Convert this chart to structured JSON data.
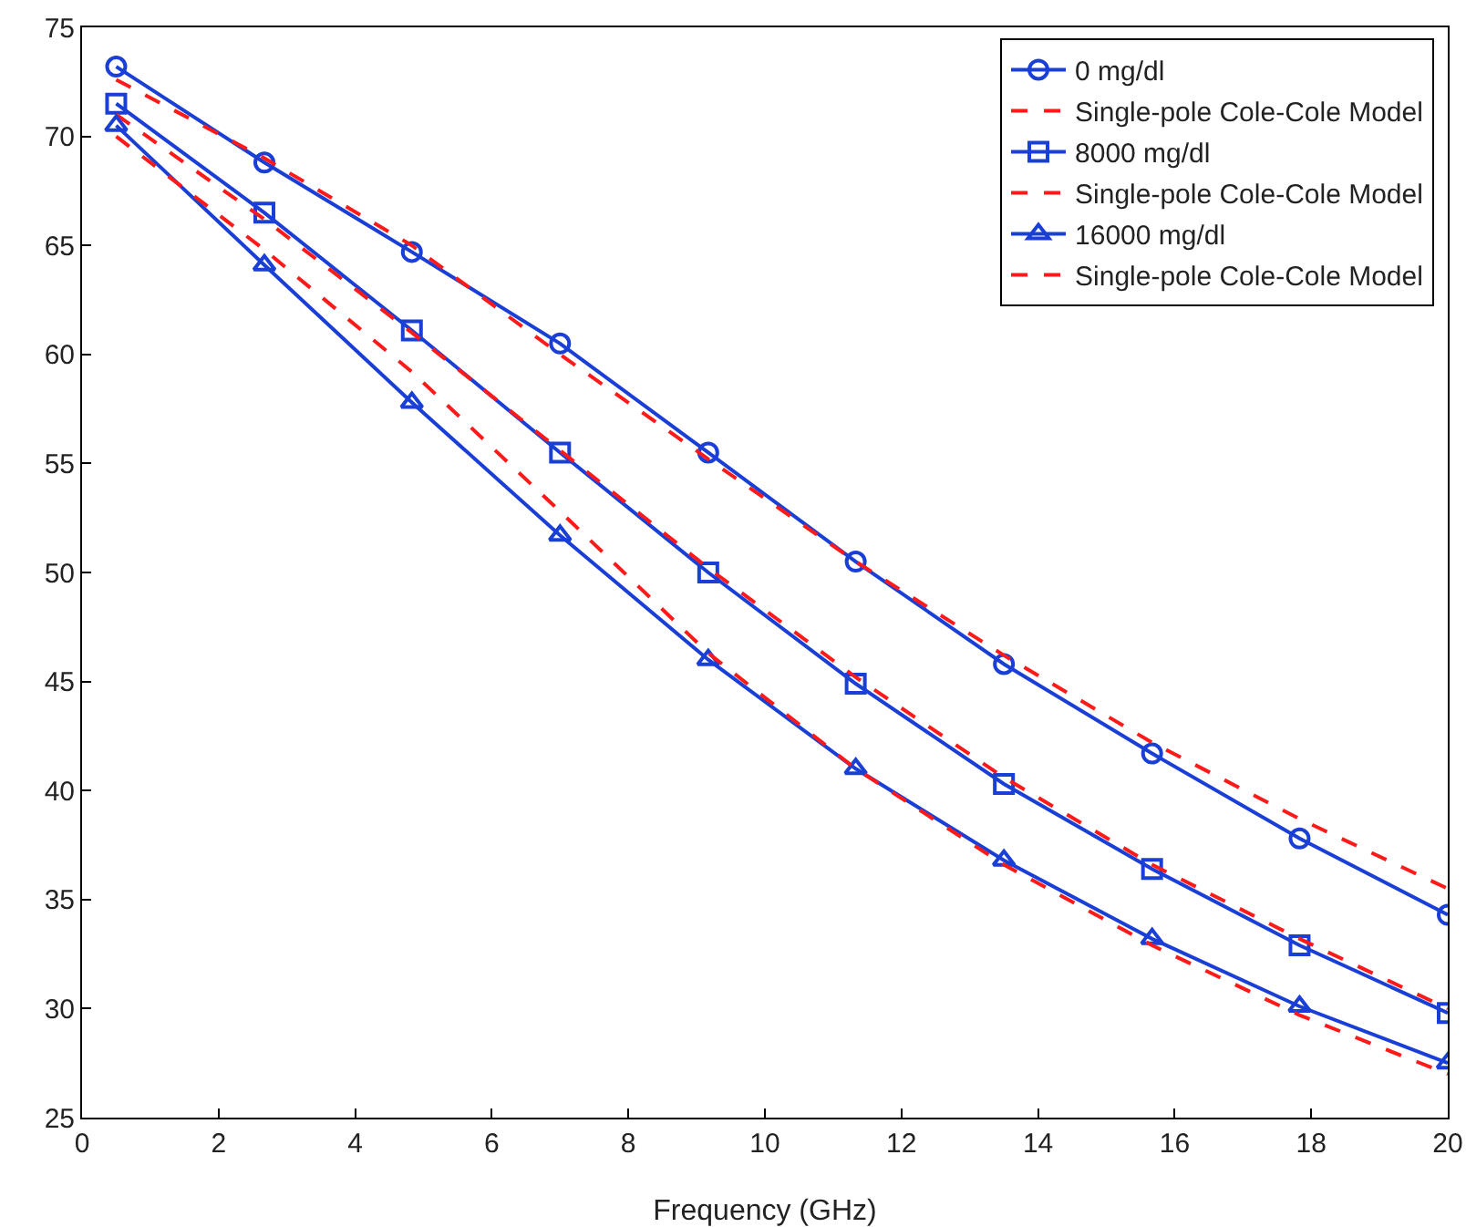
{
  "chart_data": {
    "type": "line",
    "xlabel": "Frequency (GHz)",
    "x": [
      0.5,
      2.67,
      4.83,
      7.0,
      9.17,
      11.33,
      13.5,
      15.67,
      17.83,
      20
    ],
    "series": [
      {
        "name": "0 mg/dl",
        "color": "#1a3fd6",
        "marker": "circle",
        "line_style": "solid",
        "values": [
          73.2,
          68.8,
          64.7,
          60.5,
          55.5,
          50.5,
          45.8,
          41.7,
          37.8,
          34.3
        ]
      },
      {
        "name": "Single-pole Cole-Cole Model",
        "color": "#ff1a1a",
        "marker": "none",
        "line_style": "dashed",
        "values": [
          72.6,
          69.0,
          65.0,
          60.0,
          55.2,
          50.5,
          46.2,
          42.2,
          38.7,
          35.5
        ]
      },
      {
        "name": "8000 mg/dl",
        "color": "#1a3fd6",
        "marker": "square",
        "line_style": "solid",
        "values": [
          71.5,
          66.5,
          61.1,
          55.5,
          50.0,
          44.9,
          40.3,
          36.4,
          32.9,
          29.8
        ]
      },
      {
        "name": "Single-pole Cole-Cole Model",
        "color": "#ff1a1a",
        "marker": "none",
        "line_style": "dashed",
        "values": [
          71.0,
          66.2,
          61.0,
          55.6,
          50.2,
          45.2,
          40.6,
          36.6,
          33.2,
          30.0
        ]
      },
      {
        "name": "16000 mg/dl",
        "color": "#1a3fd6",
        "marker": "triangle",
        "line_style": "solid",
        "values": [
          70.5,
          64.1,
          57.8,
          51.7,
          46.0,
          41.0,
          36.8,
          33.2,
          30.1,
          27.5
        ]
      },
      {
        "name": "Single-pole Cole-Cole Model",
        "color": "#ff1a1a",
        "marker": "none",
        "line_style": "dashed",
        "values": [
          70.0,
          64.8,
          59.2,
          52.8,
          46.3,
          41.0,
          36.6,
          32.9,
          29.7,
          27.0
        ]
      }
    ],
    "xlim": [
      0,
      20
    ],
    "xticks": [
      0,
      2,
      4,
      6,
      8,
      10,
      12,
      14,
      16,
      18,
      20
    ],
    "ylim": [
      25,
      75
    ],
    "yticks": [
      25,
      30,
      35,
      40,
      45,
      50,
      55,
      60,
      65,
      70,
      75
    ],
    "grid": false,
    "legend": "top right"
  }
}
